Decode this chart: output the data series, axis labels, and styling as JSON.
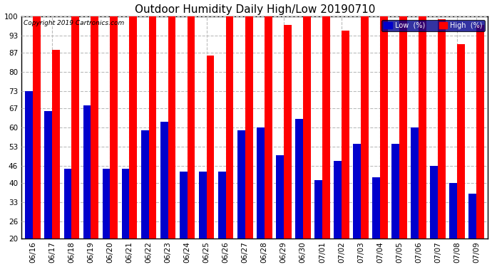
{
  "title": "Outdoor Humidity Daily High/Low 20190710",
  "copyright": "Copyright 2019 Cartronics.com",
  "dates": [
    "06/16",
    "06/17",
    "06/18",
    "06/19",
    "06/20",
    "06/21",
    "06/22",
    "06/23",
    "06/24",
    "06/25",
    "06/26",
    "06/27",
    "06/28",
    "06/29",
    "06/30",
    "07/01",
    "07/02",
    "07/03",
    "07/04",
    "07/05",
    "07/06",
    "07/07",
    "07/08",
    "07/09"
  ],
  "high": [
    100,
    88,
    100,
    100,
    100,
    100,
    100,
    100,
    100,
    86,
    100,
    100,
    100,
    97,
    100,
    100,
    95,
    100,
    100,
    100,
    100,
    99,
    90,
    97
  ],
  "low": [
    73,
    66,
    45,
    68,
    45,
    45,
    59,
    62,
    44,
    44,
    44,
    59,
    60,
    50,
    63,
    41,
    48,
    54,
    42,
    54,
    60,
    46,
    40,
    36
  ],
  "high_color": "#ff0000",
  "low_color": "#0000cc",
  "bg_color": "#ffffff",
  "plot_bg_color": "#ffffff",
  "ylim_min": 20,
  "ylim_max": 100,
  "yticks": [
    20,
    26,
    33,
    40,
    46,
    53,
    60,
    67,
    73,
    80,
    87,
    93,
    100
  ],
  "title_fontsize": 11,
  "tick_fontsize": 7.5,
  "bar_width": 0.4,
  "legend_bg": "#00008b"
}
